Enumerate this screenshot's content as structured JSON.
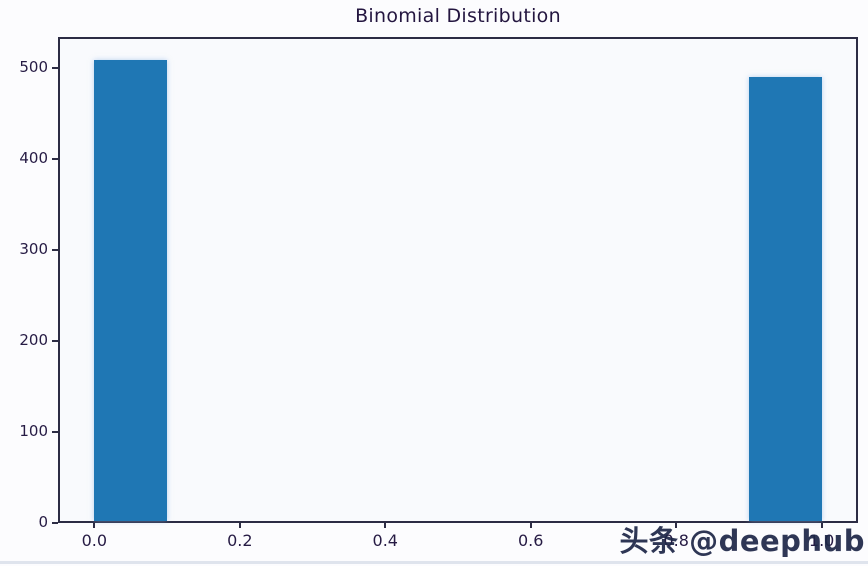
{
  "figure": {
    "background": "#fcfcfe",
    "plot_background": "#f9fafd",
    "spine_color": "#2c2c44",
    "text_color": "#261b44",
    "title_color": "#241640"
  },
  "watermark": {
    "text": "头条 @deephub",
    "color": "#1d2647"
  },
  "chart_data": {
    "type": "bar",
    "title": "Binomial Distribution",
    "xlabel": "",
    "ylabel": "",
    "grid": false,
    "legend": null,
    "bar_color": "#1f77b4",
    "xlim": [
      -0.05,
      1.05
    ],
    "ylim": [
      0,
      534.5
    ],
    "x_ticks": {
      "values": [
        0.0,
        0.2,
        0.4,
        0.6,
        0.8,
        1.0
      ],
      "labels": [
        "0.0",
        "0.2",
        "0.4",
        "0.6",
        "0.8",
        "1.0"
      ]
    },
    "y_ticks": {
      "values": [
        0,
        100,
        200,
        300,
        400,
        500
      ],
      "labels": [
        "0",
        "100",
        "200",
        "300",
        "400",
        "500"
      ]
    },
    "bars": [
      {
        "x0": 0.0,
        "x1": 0.1,
        "value": 509
      },
      {
        "x0": 0.9,
        "x1": 1.0,
        "value": 491
      }
    ]
  }
}
